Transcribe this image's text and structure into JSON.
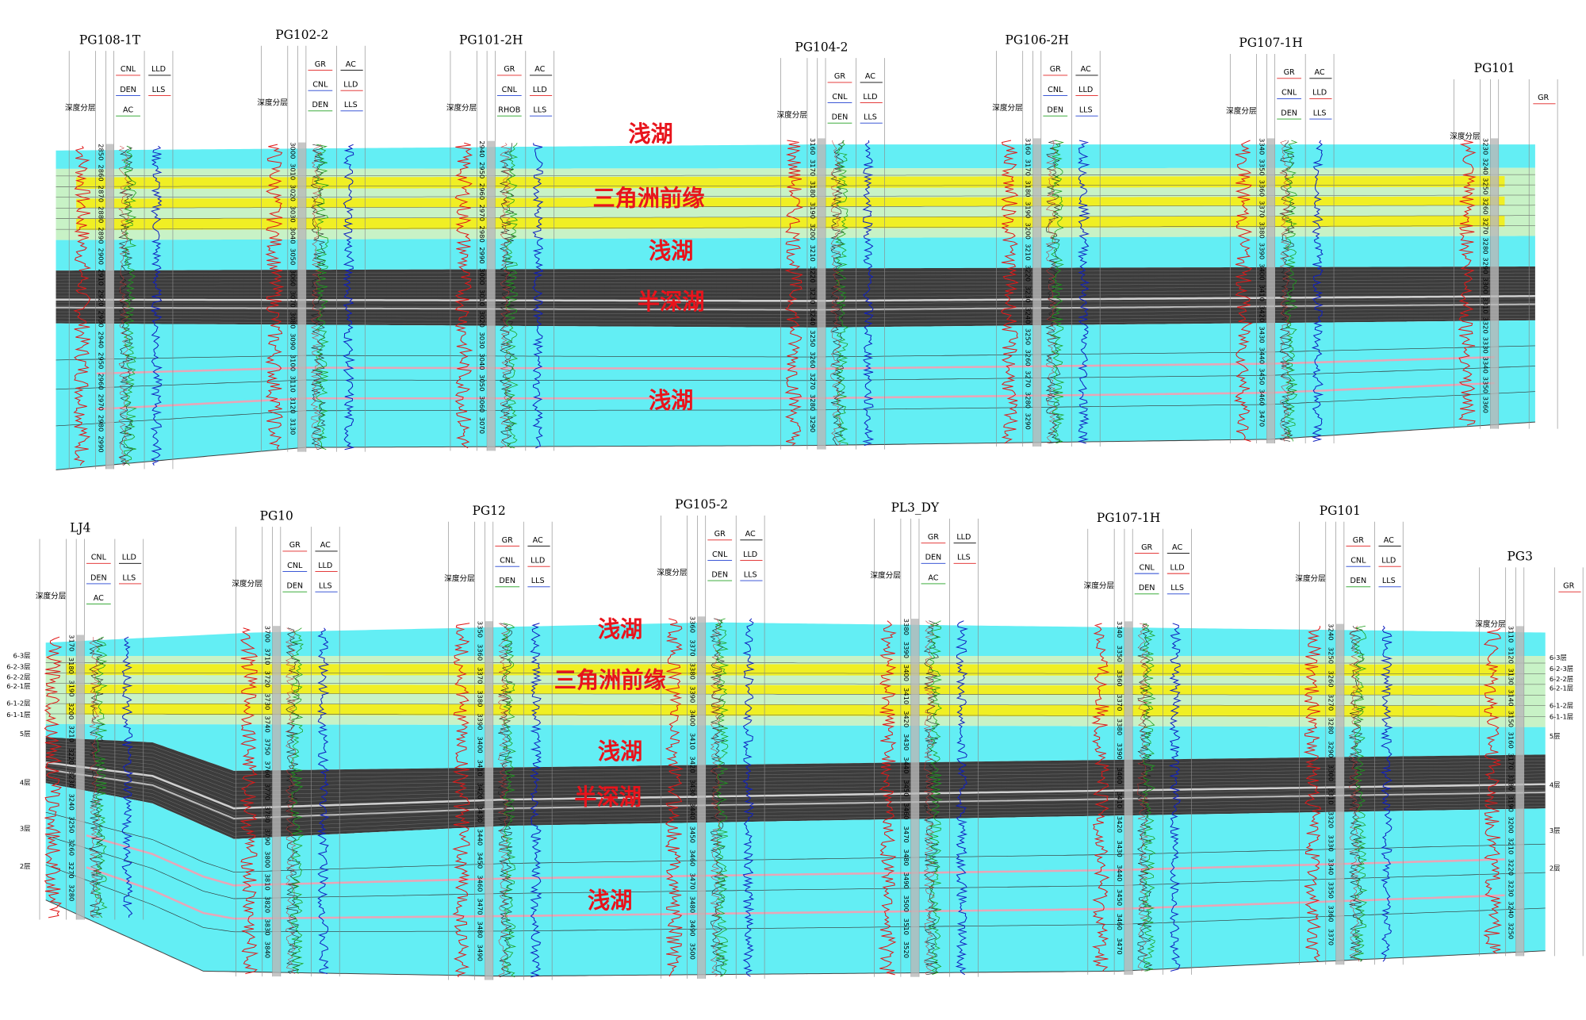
{
  "panels": [
    {
      "wells": [
        {
          "name": "PG108-1T",
          "depth_label": "深度分层",
          "curves": [
            "CNL",
            "DEN",
            "AC",
            "LLD",
            "LLS"
          ],
          "depths": [
            2850,
            2860,
            2870,
            2880,
            2890,
            2900,
            2910,
            2920,
            2930,
            2940,
            2950,
            2960,
            2970,
            2980,
            2990
          ]
        },
        {
          "name": "PG102-2",
          "depth_label": "深度分层",
          "curves": [
            "GR",
            "CNL",
            "DEN",
            "AC",
            "LLD",
            "LLS"
          ],
          "depths": [
            3000,
            3010,
            3020,
            3030,
            3040,
            3050,
            3060,
            3070,
            3080,
            3090,
            3100,
            3110,
            3120,
            3130
          ]
        },
        {
          "name": "PG101-2H",
          "depth_label": "深度分层",
          "curves": [
            "GR",
            "CNL",
            "RHOB",
            "AC",
            "LLD",
            "LLS"
          ],
          "depths": [
            2940,
            2950,
            2960,
            2970,
            2980,
            2990,
            3000,
            3010,
            3020,
            3030,
            3040,
            3050,
            3060,
            3070
          ]
        },
        {
          "name": "PG104-2",
          "depth_label": "深度分层",
          "curves": [
            "GR",
            "CNL",
            "DEN",
            "AC",
            "LLD",
            "LLS"
          ],
          "depths": [
            3160,
            3170,
            3180,
            3190,
            3200,
            3210,
            3220,
            3230,
            3240,
            3250,
            3260,
            3270,
            3280,
            3290
          ]
        },
        {
          "name": "PG106-2H",
          "depth_label": "深度分层",
          "curves": [
            "GR",
            "CNL",
            "DEN",
            "AC",
            "LLD",
            "LLS"
          ],
          "depths": [
            3160,
            3170,
            3180,
            3190,
            3200,
            3210,
            3220,
            3230,
            3240,
            3250,
            3260,
            3270,
            3280,
            3290
          ]
        },
        {
          "name": "PG107-1H",
          "depth_label": "深度分层",
          "curves": [
            "GR",
            "CNL",
            "DEN",
            "AC",
            "LLD",
            "LLS"
          ],
          "depths": [
            3340,
            3350,
            3360,
            3370,
            3380,
            3390,
            3400,
            3410,
            3420,
            3430,
            3440,
            3450,
            3460,
            3470
          ]
        },
        {
          "name": "PG101",
          "depth_label": "深度分层",
          "curves": [
            "GR"
          ],
          "depths": [
            3230,
            3240,
            3250,
            3260,
            3270,
            3280,
            3290,
            3300,
            3310,
            3320,
            3330,
            3340,
            3350,
            3360
          ]
        }
      ],
      "facies": [
        "浅湖",
        "三角洲前缘",
        "浅湖",
        "半深湖",
        "浅湖"
      ]
    },
    {
      "wells": [
        {
          "name": "LJ4",
          "depth_label": "深度分层",
          "curves": [
            "CNL",
            "DEN",
            "AC",
            "LLD",
            "LLS"
          ],
          "depths": [
            3170,
            3180,
            3190,
            3200,
            3210,
            3220,
            3230,
            3240,
            3250,
            3260,
            3270,
            3280
          ]
        },
        {
          "name": "PG10",
          "depth_label": "深度分层",
          "curves": [
            "GR",
            "CNL",
            "DEN",
            "AC",
            "LLD",
            "LLS"
          ],
          "depths": [
            3700,
            3710,
            3720,
            3730,
            3740,
            3750,
            3760,
            3770,
            3780,
            3790,
            3800,
            3810,
            3820,
            3830,
            3840
          ]
        },
        {
          "name": "PG12",
          "depth_label": "深度分层",
          "curves": [
            "GR",
            "CNL",
            "DEN",
            "AC",
            "LLD",
            "LLS"
          ],
          "depths": [
            3350,
            3360,
            3370,
            3380,
            3390,
            3400,
            3410,
            3420,
            3430,
            3440,
            3450,
            3460,
            3470,
            3480,
            3490
          ]
        },
        {
          "name": "PG105-2",
          "depth_label": "深度分层",
          "curves": [
            "GR",
            "CNL",
            "DEN",
            "AC",
            "LLD",
            "LLS"
          ],
          "depths": [
            3360,
            3370,
            3380,
            3390,
            3400,
            3410,
            3420,
            3430,
            3440,
            3450,
            3460,
            3470,
            3480,
            3490,
            3500
          ]
        },
        {
          "name": "PL3_DY",
          "depth_label": "深度分层",
          "curves": [
            "GR",
            "DEN",
            "AC",
            "LLD",
            "LLS"
          ],
          "depths": [
            3380,
            3390,
            3400,
            3410,
            3420,
            3430,
            3440,
            3450,
            3460,
            3470,
            3480,
            3490,
            3500,
            3510,
            3520
          ]
        },
        {
          "name": "PG107-1H",
          "depth_label": "深度分层",
          "curves": [
            "GR",
            "CNL",
            "DEN",
            "AC",
            "LLD",
            "LLS"
          ],
          "depths": [
            3340,
            3350,
            3360,
            3370,
            3380,
            3390,
            3400,
            3410,
            3420,
            3430,
            3440,
            3450,
            3460,
            3470
          ]
        },
        {
          "name": "PG101",
          "depth_label": "深度分层",
          "curves": [
            "GR",
            "CNL",
            "DEN",
            "AC",
            "LLD",
            "LLS"
          ],
          "depths": [
            3240,
            3250,
            3260,
            3270,
            3280,
            3290,
            3300,
            3310,
            3320,
            3330,
            3340,
            3350,
            3360,
            3370
          ]
        },
        {
          "name": "PG3",
          "depth_label": "深度分层",
          "curves": [
            "GR"
          ],
          "depths": [
            3110,
            3120,
            3130,
            3140,
            3150,
            3160,
            3170,
            3180,
            3190,
            3200,
            3210,
            3220,
            3230,
            3240,
            3250
          ]
        }
      ],
      "facies": [
        "浅湖",
        "三角洲前缘",
        "浅湖",
        "半深湖",
        "浅湖"
      ],
      "zones": [
        "6-3层",
        "6-2-3层",
        "6-2-2层",
        "6-2-1层",
        "6-1-2层",
        "6-1-1层",
        "5层",
        "4层",
        "3层",
        "2层"
      ]
    }
  ]
}
